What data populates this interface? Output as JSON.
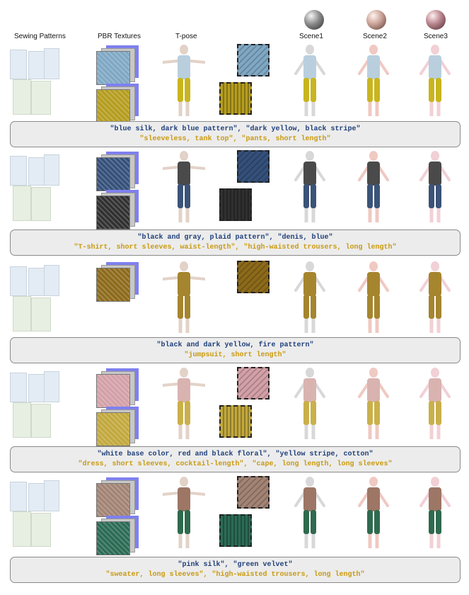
{
  "headers": {
    "sewing_patterns": "Sewing Patterns",
    "pbr_textures": "PBR Textures",
    "t_pose": "T-pose",
    "scene1": "Scene1",
    "scene2": "Scene2",
    "scene3": "Scene3"
  },
  "rows": [
    {
      "texture_prompt": "\"blue silk, dark blue pattern\", \"dark yellow, black stripe\"",
      "garment_prompt": "\"sleeveless, tank top\", \"pants, short length\"",
      "top_color": "#b9cfde",
      "bottom_color": "#c8b51e",
      "tex1": "#7fa8c4",
      "tex2": "#b59d1f"
    },
    {
      "texture_prompt": "\"black and gray, plaid pattern\", \"denis, blue\"",
      "garment_prompt": "\"T-shirt, short sleeves, waist-length\", \"high-waisted trousers, long length\"",
      "top_color": "#4a4a4a",
      "bottom_color": "#3b5378",
      "tex1": "#34507a",
      "tex2": "#303030"
    },
    {
      "texture_prompt": "\"black and dark yellow, fire pattern\"",
      "garment_prompt": "\"jumpsuit, short length\"",
      "top_color": "#a5852e",
      "bottom_color": "#a5852e",
      "tex1": "#8c6a1a",
      "tex2": "#8c6a1a"
    },
    {
      "texture_prompt": "\"white base color, red and black floral\", \"yellow stripe, cotton\"",
      "garment_prompt": "\"dress, short sleeves, cocktail-length\", \"cape, long length, long sleeves\"",
      "top_color": "#d9b3b0",
      "bottom_color": "#c9b04a",
      "tex1": "#d3a0a8",
      "tex2": "#c2a83d"
    },
    {
      "texture_prompt": "\"pink silk\", \"green velvet\"",
      "garment_prompt": "\"sweater, long sleeves\", \"high-waisted trousers, long length\"",
      "top_color": "#9d7665",
      "bottom_color": "#2f6a4e",
      "tex1": "#a28374",
      "tex2": "#2b6b55"
    }
  ],
  "colors": {
    "blue_text": "#1f3f7a",
    "yellow_text": "#c99a10",
    "caption_bg": "#ececec",
    "skin": "#e2d2c8",
    "material_back": "#7f80ee"
  }
}
